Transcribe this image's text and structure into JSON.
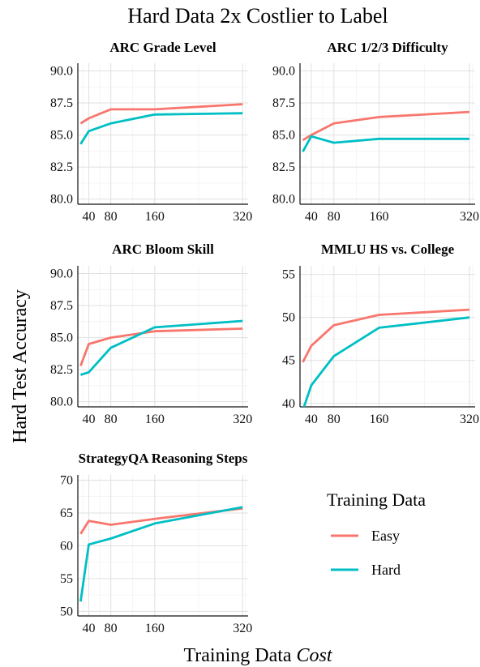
{
  "title": "Hard Data 2x Costlier to Label",
  "ylabel": "Hard Test Accuracy",
  "xlabel_main": "Training Data ",
  "xlabel_italic": "Cost",
  "legend": {
    "title": "Training Data",
    "items": [
      {
        "label": "Easy",
        "color": "#F8766D"
      },
      {
        "label": "Hard",
        "color": "#00BFC4"
      }
    ]
  },
  "chart_data": [
    {
      "type": "line",
      "title": "ARC Grade Level",
      "xticks": [
        40,
        80,
        160,
        320
      ],
      "xlim": [
        20,
        330
      ],
      "yticks": [
        80.0,
        82.5,
        85.0,
        87.5,
        90.0
      ],
      "ytick_labels": [
        "80.0",
        "82.5",
        "85.0",
        "87.5",
        "90.0"
      ],
      "ylim": [
        79.6,
        90.6
      ],
      "series": [
        {
          "name": "Easy",
          "color": "#F8766D",
          "points": [
            [
              25,
              85.9
            ],
            [
              40,
              86.3
            ],
            [
              80,
              87.0
            ],
            [
              160,
              87.0
            ],
            [
              320,
              87.4
            ]
          ]
        },
        {
          "name": "Hard",
          "color": "#00BFC4",
          "points": [
            [
              25,
              84.3
            ],
            [
              40,
              85.3
            ],
            [
              80,
              85.9
            ],
            [
              160,
              86.6
            ],
            [
              320,
              86.7
            ]
          ]
        }
      ]
    },
    {
      "type": "line",
      "title": "ARC 1/2/3 Difficulty",
      "xticks": [
        40,
        80,
        160,
        320
      ],
      "xlim": [
        20,
        330
      ],
      "yticks": [
        80.0,
        82.5,
        85.0,
        87.5,
        90.0
      ],
      "ytick_labels": [
        "80.0",
        "82.5",
        "85.0",
        "87.5",
        "90.0"
      ],
      "ylim": [
        79.6,
        90.6
      ],
      "series": [
        {
          "name": "Easy",
          "color": "#F8766D",
          "points": [
            [
              25,
              84.6
            ],
            [
              40,
              85.0
            ],
            [
              80,
              85.9
            ],
            [
              160,
              86.4
            ],
            [
              320,
              86.8
            ]
          ]
        },
        {
          "name": "Hard",
          "color": "#00BFC4",
          "points": [
            [
              25,
              83.7
            ],
            [
              40,
              84.9
            ],
            [
              80,
              84.4
            ],
            [
              160,
              84.7
            ],
            [
              320,
              84.7
            ]
          ]
        }
      ]
    },
    {
      "type": "line",
      "title": "ARC Bloom Skill",
      "xticks": [
        40,
        80,
        160,
        320
      ],
      "xlim": [
        20,
        330
      ],
      "yticks": [
        80.0,
        82.5,
        85.0,
        87.5,
        90.0
      ],
      "ytick_labels": [
        "80.0",
        "82.5",
        "85.0",
        "87.5",
        "90.0"
      ],
      "ylim": [
        79.6,
        90.6
      ],
      "series": [
        {
          "name": "Easy",
          "color": "#F8766D",
          "points": [
            [
              25,
              82.8
            ],
            [
              40,
              84.5
            ],
            [
              80,
              85.0
            ],
            [
              160,
              85.5
            ],
            [
              320,
              85.7
            ]
          ]
        },
        {
          "name": "Hard",
          "color": "#00BFC4",
          "points": [
            [
              25,
              82.1
            ],
            [
              40,
              82.3
            ],
            [
              80,
              84.2
            ],
            [
              160,
              85.8
            ],
            [
              320,
              86.3
            ]
          ]
        }
      ]
    },
    {
      "type": "line",
      "title": "MMLU HS vs. College",
      "xticks": [
        40,
        80,
        160,
        320
      ],
      "xlim": [
        20,
        330
      ],
      "yticks": [
        40,
        45,
        50,
        55
      ],
      "ytick_labels": [
        "40",
        "45",
        "50",
        "55"
      ],
      "ylim": [
        39.6,
        56.0
      ],
      "series": [
        {
          "name": "Easy",
          "color": "#F8766D",
          "points": [
            [
              25,
              44.8
            ],
            [
              40,
              46.7
            ],
            [
              80,
              49.1
            ],
            [
              160,
              50.3
            ],
            [
              320,
              50.9
            ]
          ]
        },
        {
          "name": "Hard",
          "color": "#00BFC4",
          "points": [
            [
              25,
              39.2
            ],
            [
              40,
              42.1
            ],
            [
              80,
              45.5
            ],
            [
              160,
              48.8
            ],
            [
              320,
              50.0
            ]
          ]
        }
      ]
    },
    {
      "type": "line",
      "title": "StrategyQA Reasoning Steps",
      "xticks": [
        40,
        80,
        160,
        320
      ],
      "xlim": [
        20,
        330
      ],
      "yticks": [
        50,
        55,
        60,
        65,
        70
      ],
      "ytick_labels": [
        "50",
        "55",
        "60",
        "65",
        "70"
      ],
      "ylim": [
        49.3,
        70.8
      ],
      "series": [
        {
          "name": "Easy",
          "color": "#F8766D",
          "points": [
            [
              25,
              61.8
            ],
            [
              40,
              63.8
            ],
            [
              80,
              63.2
            ],
            [
              160,
              64.1
            ],
            [
              320,
              65.7
            ]
          ]
        },
        {
          "name": "Hard",
          "color": "#00BFC4",
          "points": [
            [
              25,
              51.5
            ],
            [
              40,
              60.2
            ],
            [
              80,
              61.1
            ],
            [
              160,
              63.4
            ],
            [
              320,
              65.9
            ]
          ]
        }
      ]
    }
  ]
}
